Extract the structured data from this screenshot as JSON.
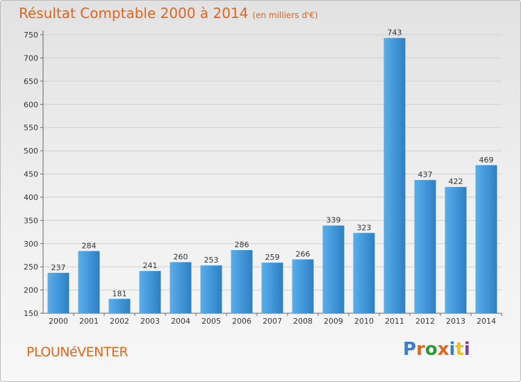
{
  "header": {
    "title": "Résultat Comptable 2000 à 2014",
    "subtitle": "(en milliers d'€)"
  },
  "footer": {
    "commune": "PLOUNéVENTER",
    "brand": "Proxiti",
    "brand_colors": [
      "#3a7ec6",
      "#e2651c",
      "#2f9a3a",
      "#e2651c",
      "#3a7ec6",
      "#e8c12a",
      "#7a3fa0"
    ]
  },
  "chart_data": {
    "type": "bar",
    "categories": [
      "2000",
      "2001",
      "2002",
      "2003",
      "2004",
      "2005",
      "2006",
      "2007",
      "2008",
      "2009",
      "2010",
      "2011",
      "2012",
      "2013",
      "2014"
    ],
    "values": [
      237,
      284,
      181,
      241,
      260,
      253,
      286,
      259,
      266,
      339,
      323,
      743,
      437,
      422,
      469
    ],
    "ylim": [
      150,
      750
    ],
    "yticks": [
      150,
      200,
      250,
      300,
      350,
      400,
      450,
      500,
      550,
      600,
      650,
      700,
      750
    ],
    "grid": true,
    "bar_color": "#3f95d8"
  }
}
